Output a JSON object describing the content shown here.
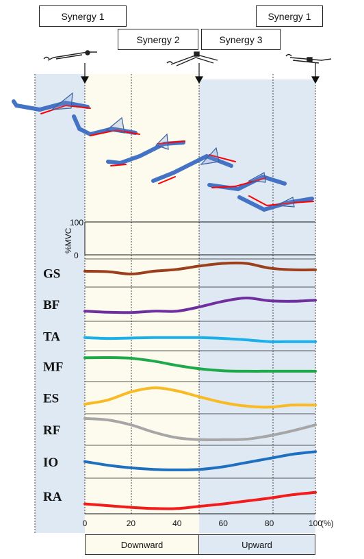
{
  "synergy_boxes": [
    "Synergy 1",
    "Synergy 2",
    "Synergy 3",
    "Synergy 1"
  ],
  "scale": {
    "unit": "%MVC",
    "max": "100",
    "min": "0"
  },
  "muscles": [
    "GS",
    "BF",
    "TA",
    "MF",
    "ES",
    "RF",
    "IO",
    "RA"
  ],
  "x_ticks": [
    "0",
    "20",
    "40",
    "60",
    "80",
    "100"
  ],
  "x_unit": "(%)",
  "phases": [
    "Downward",
    "Upward"
  ],
  "colors": {
    "GS": "#9c3f1c",
    "BF": "#6f2f9f",
    "TA": "#1ab0ea",
    "MF": "#1ea94a",
    "ES": "#f9bb25",
    "RF": "#a6a6a6",
    "IO": "#1f6fc0",
    "RA": "#f21c1c",
    "downward_bg": "#fdfbee",
    "upward_bg": "#dfe9f3",
    "body_segment": "#4472c4",
    "reference": "#ff0000"
  },
  "chart_data": {
    "type": "line",
    "x": [
      0,
      10,
      20,
      30,
      40,
      50,
      60,
      70,
      80,
      90,
      100
    ],
    "series": [
      {
        "name": "GS",
        "values": [
          55,
          53,
          42,
          55,
          64,
          80,
          92,
          92,
          70,
          62,
          62
        ]
      },
      {
        "name": "BF",
        "values": [
          22,
          18,
          17,
          22,
          22,
          38,
          58,
          70,
          60,
          58,
          62
        ]
      },
      {
        "name": "TA",
        "values": [
          40,
          36,
          38,
          40,
          40,
          40,
          36,
          30,
          22,
          22,
          22
        ]
      },
      {
        "name": "MF",
        "values": [
          82,
          83,
          80,
          68,
          50,
          36,
          28,
          26,
          26,
          26,
          26
        ]
      },
      {
        "name": "ES",
        "values": [
          22,
          38,
          70,
          86,
          74,
          50,
          28,
          14,
          10,
          18,
          18
        ]
      },
      {
        "name": "RF",
        "values": [
          92,
          86,
          66,
          36,
          14,
          6,
          6,
          8,
          22,
          42,
          66
        ]
      },
      {
        "name": "IO",
        "values": [
          48,
          34,
          24,
          18,
          16,
          18,
          28,
          44,
          60,
          76,
          86
        ]
      },
      {
        "name": "RA",
        "values": [
          20,
          14,
          8,
          4,
          4,
          12,
          20,
          30,
          40,
          52,
          60
        ]
      }
    ],
    "xlim": [
      0,
      100
    ],
    "ylim": [
      0,
      100
    ]
  }
}
